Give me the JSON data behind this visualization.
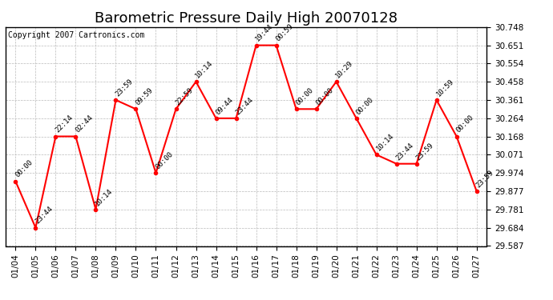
{
  "title": "Barometric Pressure Daily High 20070128",
  "copyright": "Copyright 2007 Cartronics.com",
  "dates": [
    "01/04",
    "01/05",
    "01/06",
    "01/07",
    "01/08",
    "01/09",
    "01/10",
    "01/11",
    "01/12",
    "01/13",
    "01/14",
    "01/15",
    "01/16",
    "01/17",
    "01/18",
    "01/19",
    "01/20",
    "01/21",
    "01/22",
    "01/23",
    "01/24",
    "01/25",
    "01/26",
    "01/27"
  ],
  "values": [
    29.93,
    29.684,
    30.168,
    30.168,
    29.781,
    30.361,
    30.313,
    29.974,
    30.313,
    30.458,
    30.264,
    30.264,
    30.651,
    30.651,
    30.313,
    30.313,
    30.458,
    30.264,
    30.071,
    30.023,
    30.023,
    30.361,
    30.168,
    29.877
  ],
  "times": [
    "00:00",
    "23:44",
    "22:14",
    "02:44",
    "10:14",
    "23:59",
    "09:59",
    "00:00",
    "22:59",
    "10:14",
    "09:44",
    "23:44",
    "19:44",
    "00:59",
    "00:00",
    "00:00",
    "10:29",
    "00:00",
    "10:14",
    "23:44",
    "23:59",
    "10:59",
    "00:00",
    "23:59"
  ],
  "line_color": "#ff0000",
  "marker_color": "#ff0000",
  "background_color": "#ffffff",
  "grid_color": "#bbbbbb",
  "ylim": [
    29.587,
    30.748
  ],
  "yticks": [
    29.587,
    29.684,
    29.781,
    29.877,
    29.974,
    30.071,
    30.168,
    30.264,
    30.361,
    30.458,
    30.554,
    30.651,
    30.748
  ],
  "title_fontsize": 13,
  "annotation_fontsize": 6.5,
  "copyright_fontsize": 7,
  "tick_fontsize": 7.5
}
